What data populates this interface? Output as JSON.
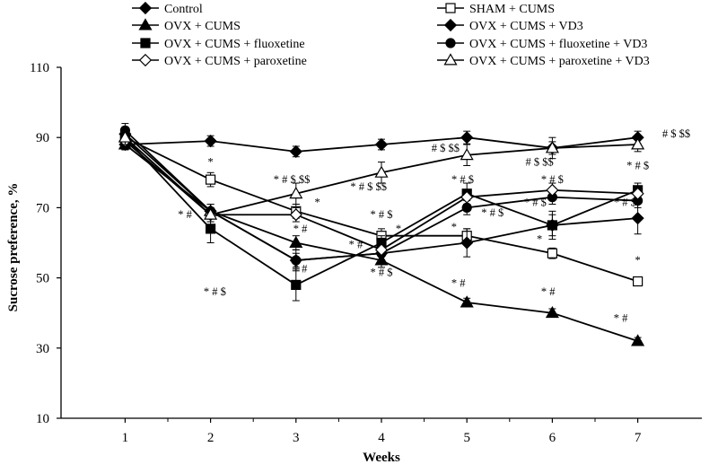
{
  "chart_data": {
    "type": "line",
    "xlabel": "Weeks",
    "ylabel": "Sucrose preference, %",
    "x": [
      1,
      2,
      3,
      4,
      5,
      6,
      7
    ],
    "xlim": [
      0.25,
      7.75
    ],
    "ylim": [
      10,
      110
    ],
    "yticks": [
      10,
      30,
      50,
      70,
      90,
      110
    ],
    "grid": false,
    "legend_position": "top",
    "series": [
      {
        "name": "Control",
        "marker": "diamond",
        "fill": "filled",
        "values": [
          88,
          89,
          86,
          88,
          90,
          87,
          90
        ],
        "errors": [
          1.5,
          1.5,
          1.5,
          1.5,
          1.8,
          1.8,
          1.8
        ]
      },
      {
        "name": "SHAM + CUMS",
        "marker": "square",
        "fill": "open",
        "values": [
          90,
          78,
          69,
          62,
          62,
          57,
          49
        ],
        "errors": [
          1.5,
          2,
          2,
          2,
          2,
          1.5,
          0
        ]
      },
      {
        "name": "OVX + CUMS",
        "marker": "triangle",
        "fill": "filled",
        "values": [
          88,
          69,
          60,
          55,
          43,
          40,
          32
        ],
        "errors": [
          1.5,
          2,
          2,
          2,
          1.2,
          1.2,
          1
        ]
      },
      {
        "name": "OVX + CUMS + VD3",
        "marker": "diamond",
        "fill": "filled",
        "values": [
          91,
          69,
          55,
          57,
          60,
          65,
          67
        ],
        "errors": [
          2,
          2,
          3,
          2,
          4,
          3,
          4.5
        ]
      },
      {
        "name": "OVX + CUMS + fluoxetine",
        "marker": "square",
        "fill": "filled",
        "values": [
          90,
          64,
          48,
          60,
          74,
          65,
          75
        ],
        "errors": [
          2,
          4,
          4.5,
          2,
          3,
          4,
          2
        ]
      },
      {
        "name": "OVX + CUMS + fluoxetine + VD3",
        "marker": "circle",
        "fill": "filled",
        "values": [
          92,
          69,
          55,
          57,
          70,
          73,
          72
        ],
        "errors": [
          2,
          2,
          2,
          2,
          2,
          2,
          2
        ]
      },
      {
        "name": "OVX + CUMS + paroxetine",
        "marker": "diamond",
        "fill": "open",
        "values": [
          89,
          68,
          68,
          58,
          73,
          75,
          74
        ],
        "errors": [
          1.5,
          2,
          2,
          2,
          2,
          2,
          2
        ]
      },
      {
        "name": "OVX + CUMS + paroxetine + VD3",
        "marker": "triangle",
        "fill": "open",
        "values": [
          90,
          68,
          74,
          80,
          85,
          87,
          88
        ],
        "errors": [
          2,
          2,
          3,
          3,
          3,
          3,
          2
        ]
      }
    ],
    "annotations": [
      {
        "text": "*",
        "x": 2,
        "y": 82
      },
      {
        "text": "* #",
        "x": 1.7,
        "y": 67
      },
      {
        "text": "* # $ $$",
        "x": 2.95,
        "y": 77
      },
      {
        "text": "*",
        "x": 3.25,
        "y": 70.5
      },
      {
        "text": "* #",
        "x": 3.05,
        "y": 63
      },
      {
        "text": "* #",
        "x": 3.05,
        "y": 51.5
      },
      {
        "text": "* # $",
        "x": 2.05,
        "y": 45
      },
      {
        "text": "* # $ $$",
        "x": 3.85,
        "y": 75
      },
      {
        "text": "* # $",
        "x": 4.0,
        "y": 67
      },
      {
        "text": "*",
        "x": 4.2,
        "y": 63
      },
      {
        "text": "* #",
        "x": 3.7,
        "y": 58.5
      },
      {
        "text": "* # $",
        "x": 4.0,
        "y": 50.5
      },
      {
        "text": "# $ $$",
        "x": 4.75,
        "y": 86
      },
      {
        "text": "* # $",
        "x": 4.95,
        "y": 77
      },
      {
        "text": "* # $",
        "x": 5.3,
        "y": 67.5
      },
      {
        "text": "*",
        "x": 4.85,
        "y": 63.5
      },
      {
        "text": "* #",
        "x": 4.9,
        "y": 47.5
      },
      {
        "text": "# $ $$",
        "x": 5.85,
        "y": 82
      },
      {
        "text": "* # $",
        "x": 6.0,
        "y": 77
      },
      {
        "text": "* # $",
        "x": 5.8,
        "y": 70.5
      },
      {
        "text": "*",
        "x": 5.85,
        "y": 60
      },
      {
        "text": "* #",
        "x": 5.95,
        "y": 45
      },
      {
        "text": "# $ $$",
        "x": 7.45,
        "y": 90
      },
      {
        "text": "* # $",
        "x": 7.0,
        "y": 81
      },
      {
        "text": "* # $",
        "x": 6.85,
        "y": 70.5
      },
      {
        "text": "* #",
        "x": 6.8,
        "y": 37.5
      },
      {
        "text": "*",
        "x": 7.0,
        "y": 54
      }
    ]
  }
}
